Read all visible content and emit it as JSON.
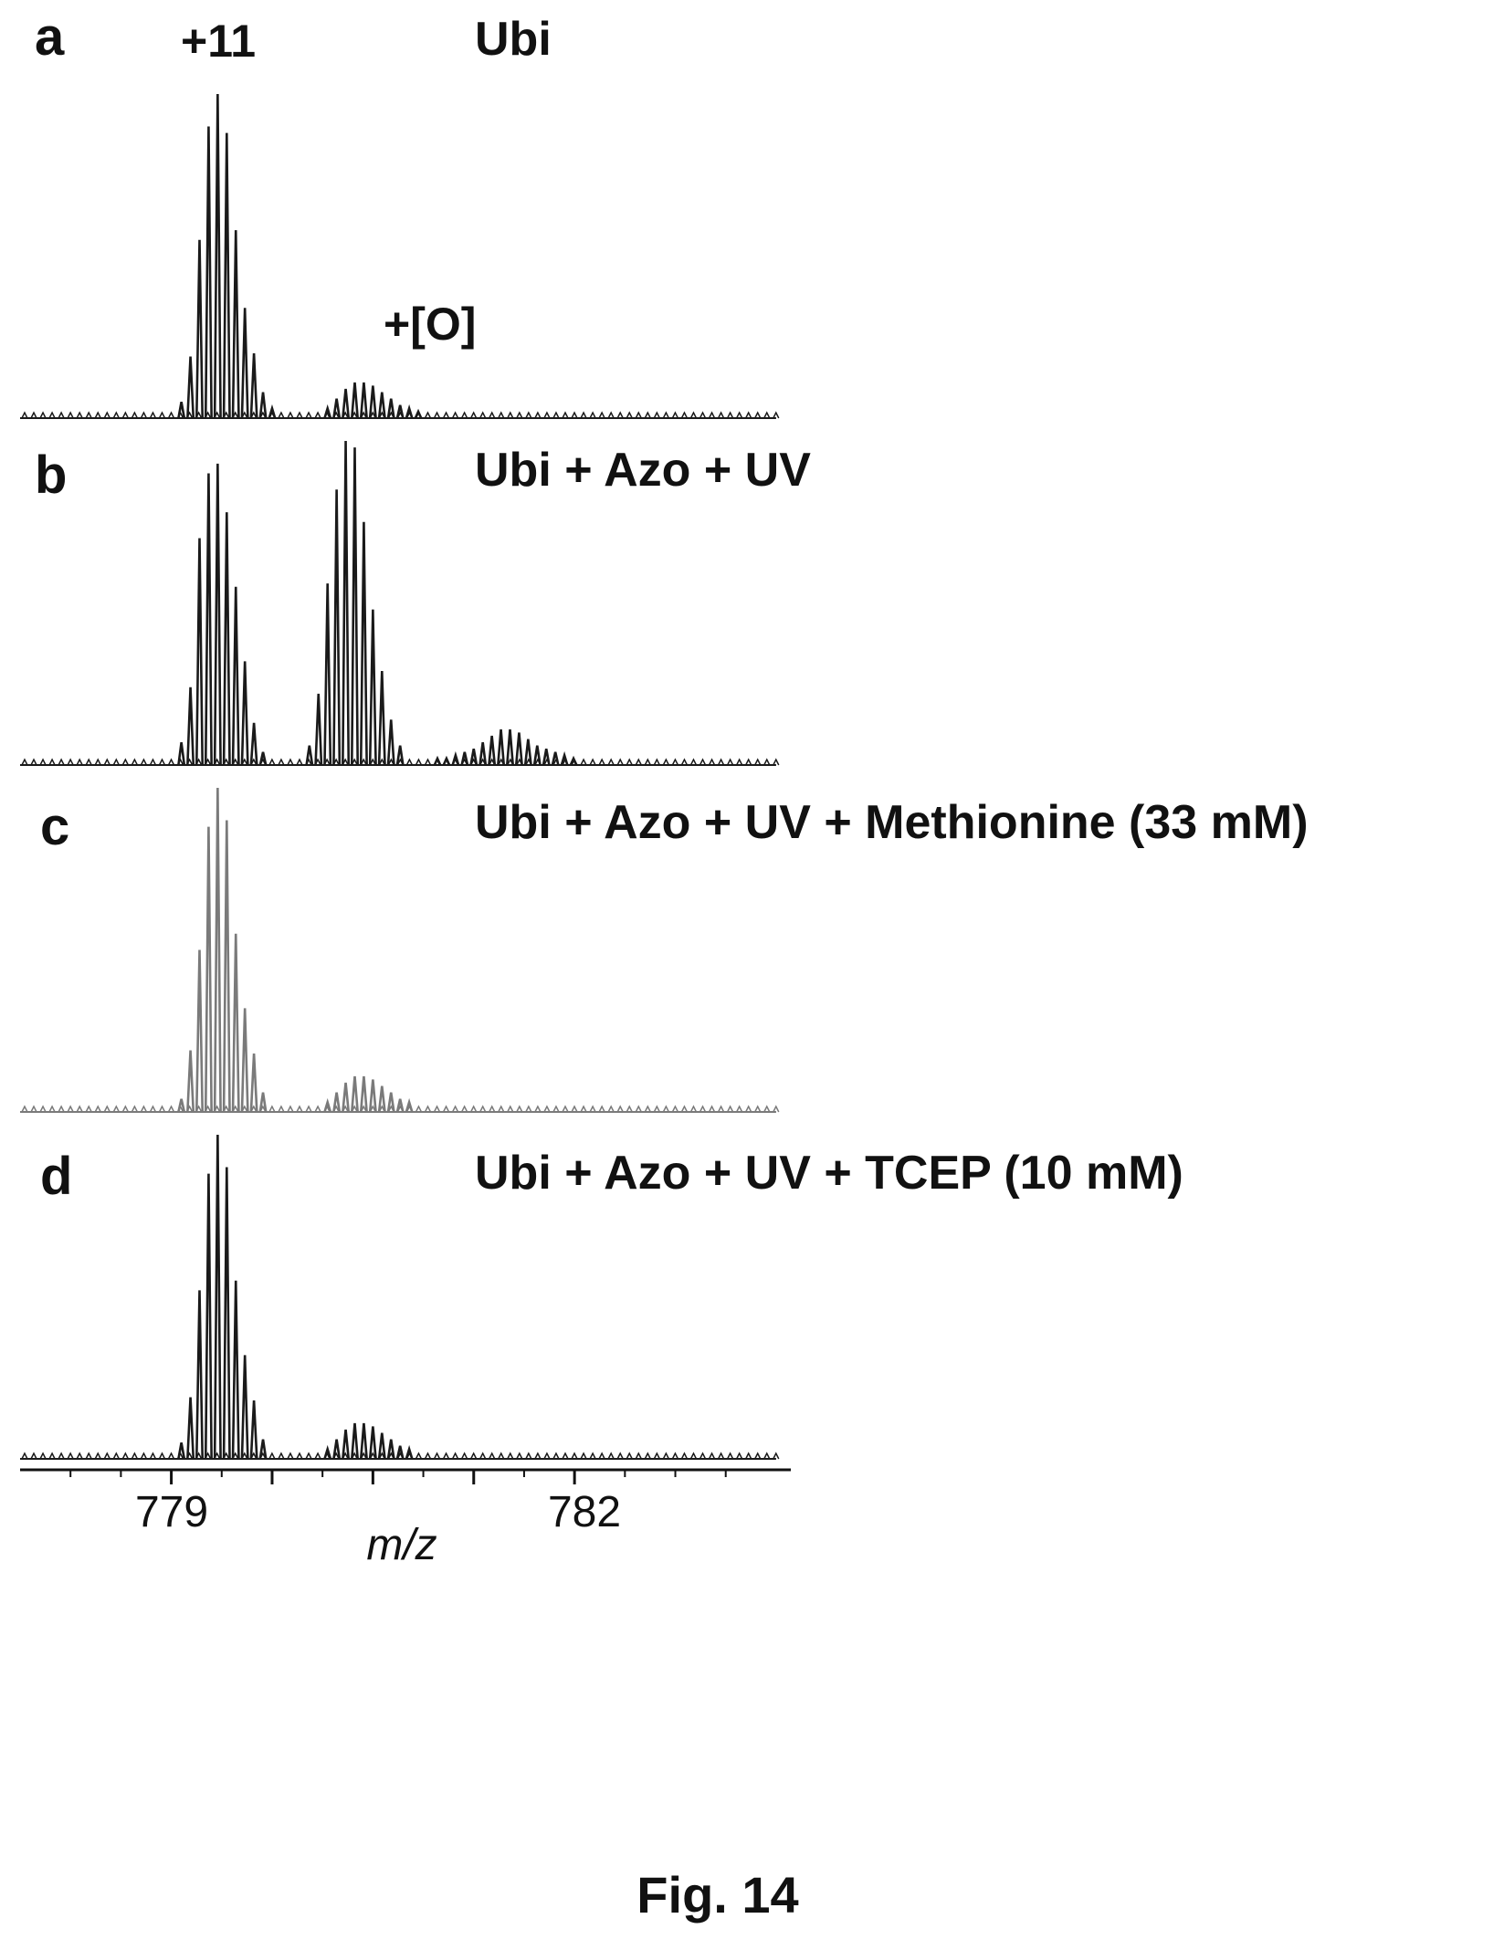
{
  "figure": {
    "caption": "Fig. 14"
  },
  "chart_data": {
    "type": "line",
    "xlabel": "m/z",
    "ylabel": "",
    "xlim": [
      777.5,
      785.2
    ],
    "x_ticks": [
      779,
      780,
      781,
      782,
      783
    ],
    "x_tick_labels": [
      {
        "value": 779,
        "label": "779"
      },
      {
        "value": 782,
        "label": "782"
      }
    ],
    "charge_state_label": "+11",
    "oxidation_label": "+[O]",
    "isotope_spacing": 0.0909,
    "panels": [
      {
        "letter": "a",
        "condition": "Ubi",
        "color": "#1a1a1a",
        "series": [
          {
            "name": "",
            "peaks": [
              [
                779.1,
                0.05
              ],
              [
                779.19,
                0.19
              ],
              [
                779.28,
                0.55
              ],
              [
                779.37,
                0.9
              ],
              [
                779.46,
                1.0
              ],
              [
                779.55,
                0.88
              ],
              [
                779.64,
                0.58
              ],
              [
                779.73,
                0.34
              ],
              [
                779.82,
                0.2
              ],
              [
                779.91,
                0.08
              ],
              [
                780.0,
                0.03
              ]
            ]
          },
          {
            "name": "",
            "peaks": [
              [
                780.55,
                0.03
              ],
              [
                780.64,
                0.06
              ],
              [
                780.73,
                0.09
              ],
              [
                780.82,
                0.11
              ],
              [
                780.91,
                0.11
              ],
              [
                781.0,
                0.1
              ],
              [
                781.09,
                0.08
              ],
              [
                781.18,
                0.06
              ],
              [
                781.27,
                0.04
              ],
              [
                781.36,
                0.03
              ],
              [
                781.45,
                0.02
              ]
            ]
          }
        ],
        "baseline_range": [
          777.5,
          785.0
        ]
      },
      {
        "letter": "b",
        "condition": "Ubi + Azo + UV",
        "color": "#1a1a1a",
        "series": [
          {
            "name": "",
            "peaks": [
              [
                779.1,
                0.07
              ],
              [
                779.19,
                0.24
              ],
              [
                779.28,
                0.7
              ],
              [
                779.37,
                0.9
              ],
              [
                779.46,
                0.93
              ],
              [
                779.55,
                0.78
              ],
              [
                779.64,
                0.55
              ],
              [
                779.73,
                0.32
              ],
              [
                779.82,
                0.13
              ],
              [
                779.91,
                0.04
              ]
            ]
          },
          {
            "name": "",
            "peaks": [
              [
                780.37,
                0.06
              ],
              [
                780.46,
                0.22
              ],
              [
                780.55,
                0.56
              ],
              [
                780.64,
                0.85
              ],
              [
                780.73,
                1.0
              ],
              [
                780.82,
                0.98
              ],
              [
                780.91,
                0.75
              ],
              [
                781.0,
                0.48
              ],
              [
                781.09,
                0.29
              ],
              [
                781.18,
                0.14
              ],
              [
                781.27,
                0.06
              ]
            ]
          },
          {
            "name": "",
            "peaks": [
              [
                781.64,
                0.02
              ],
              [
                781.73,
                0.02
              ],
              [
                781.82,
                0.03
              ],
              [
                781.91,
                0.04
              ],
              [
                782.0,
                0.05
              ],
              [
                782.09,
                0.07
              ],
              [
                782.18,
                0.09
              ],
              [
                782.27,
                0.11
              ],
              [
                782.36,
                0.11
              ],
              [
                782.45,
                0.1
              ],
              [
                782.54,
                0.08
              ],
              [
                782.63,
                0.06
              ],
              [
                782.72,
                0.05
              ],
              [
                782.81,
                0.04
              ],
              [
                782.9,
                0.03
              ],
              [
                782.99,
                0.02
              ]
            ]
          }
        ],
        "baseline_range": [
          777.5,
          785.0
        ]
      },
      {
        "letter": "c",
        "condition": "Ubi + Azo + UV + Methionine (33 mM)",
        "color": "#7a7a7a",
        "series": [
          {
            "name": "",
            "peaks": [
              [
                779.1,
                0.04
              ],
              [
                779.19,
                0.19
              ],
              [
                779.28,
                0.5
              ],
              [
                779.37,
                0.88
              ],
              [
                779.46,
                1.0
              ],
              [
                779.55,
                0.9
              ],
              [
                779.64,
                0.55
              ],
              [
                779.73,
                0.32
              ],
              [
                779.82,
                0.18
              ],
              [
                779.91,
                0.06
              ]
            ]
          },
          {
            "name": "",
            "peaks": [
              [
                780.55,
                0.03
              ],
              [
                780.64,
                0.06
              ],
              [
                780.73,
                0.09
              ],
              [
                780.82,
                0.11
              ],
              [
                780.91,
                0.11
              ],
              [
                781.0,
                0.1
              ],
              [
                781.09,
                0.08
              ],
              [
                781.18,
                0.06
              ],
              [
                781.27,
                0.04
              ],
              [
                781.36,
                0.03
              ]
            ]
          }
        ],
        "baseline_range": [
          777.5,
          785.0
        ]
      },
      {
        "letter": "d",
        "condition": "Ubi + Azo + UV + TCEP (10 mM)",
        "color": "#1a1a1a",
        "series": [
          {
            "name": "",
            "peaks": [
              [
                779.1,
                0.05
              ],
              [
                779.19,
                0.19
              ],
              [
                779.28,
                0.52
              ],
              [
                779.37,
                0.88
              ],
              [
                779.46,
                1.0
              ],
              [
                779.55,
                0.9
              ],
              [
                779.64,
                0.55
              ],
              [
                779.73,
                0.32
              ],
              [
                779.82,
                0.18
              ],
              [
                779.91,
                0.06
              ]
            ]
          },
          {
            "name": "",
            "peaks": [
              [
                780.55,
                0.03
              ],
              [
                780.64,
                0.06
              ],
              [
                780.73,
                0.09
              ],
              [
                780.82,
                0.11
              ],
              [
                780.91,
                0.11
              ],
              [
                781.0,
                0.1
              ],
              [
                781.09,
                0.08
              ],
              [
                781.18,
                0.06
              ],
              [
                781.27,
                0.04
              ],
              [
                781.36,
                0.03
              ]
            ]
          }
        ],
        "baseline_range": [
          777.5,
          785.0
        ]
      }
    ]
  }
}
